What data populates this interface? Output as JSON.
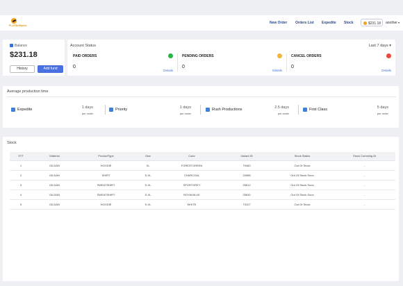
{
  "header": {
    "logo_text": "PLATINUMprint",
    "nav": [
      "New Order",
      "Orders List",
      "Expedite",
      "Stock"
    ],
    "balance_pill": "$231.18",
    "user_name": "another"
  },
  "balance": {
    "label": "Balance",
    "value": "$231.18",
    "history_label": "History",
    "add_fund_label": "Add fund"
  },
  "account_status": {
    "title": "Account Status",
    "range": "Last 7 days",
    "boxes": [
      {
        "label": "PAID ORDERS",
        "count": "0",
        "details": "Details",
        "color": "#2bb34a"
      },
      {
        "label": "PENDING ORDERS",
        "count": "0",
        "details": "Details",
        "color": "#f4b63a"
      },
      {
        "label": "CANCEL ORDERS",
        "count": "0",
        "details": "Details",
        "color": "#e74c3c"
      }
    ]
  },
  "production": {
    "title": "Average production time",
    "items": [
      {
        "name": "Expedite",
        "days": "1 days",
        "per": "per order"
      },
      {
        "name": "Priority",
        "days": "1 days",
        "per": "per order"
      },
      {
        "name": "Rush Productions",
        "days": "2.5 days",
        "per": "per order"
      },
      {
        "name": "First Class",
        "days": "5 days",
        "per": "per order"
      }
    ]
  },
  "stock": {
    "title": "Stock",
    "columns": [
      "STT",
      "Material",
      "ProductType",
      "Size",
      "Color",
      "Variant ID",
      "Stock Status",
      "Stock Comming At"
    ],
    "rows": [
      [
        "1",
        "GILDAN",
        "HOODIE",
        "XL",
        "FORESTGREEN",
        "79460",
        "Out Of Stock",
        "-"
      ],
      [
        "2",
        "GILDAN",
        "SHIRT",
        "S‑XL",
        "CHARCOAL",
        "24088",
        "Out Of Stock Soon",
        "-"
      ],
      [
        "3",
        "GILDAN",
        "SWEATSHIRT",
        "S‑XL",
        "SPORTGREY",
        "25612",
        "Out Of Stock Soon",
        "-"
      ],
      [
        "4",
        "GILDAN",
        "SWEATSHIRT",
        "S‑XL",
        "ROYALBLUE",
        "25630",
        "Out Of Stock Soon",
        "-"
      ],
      [
        "5",
        "GILDAN",
        "HOODIE",
        "S‑XL",
        "WHITE",
        "73107",
        "Out Of Stock",
        "-"
      ]
    ]
  }
}
